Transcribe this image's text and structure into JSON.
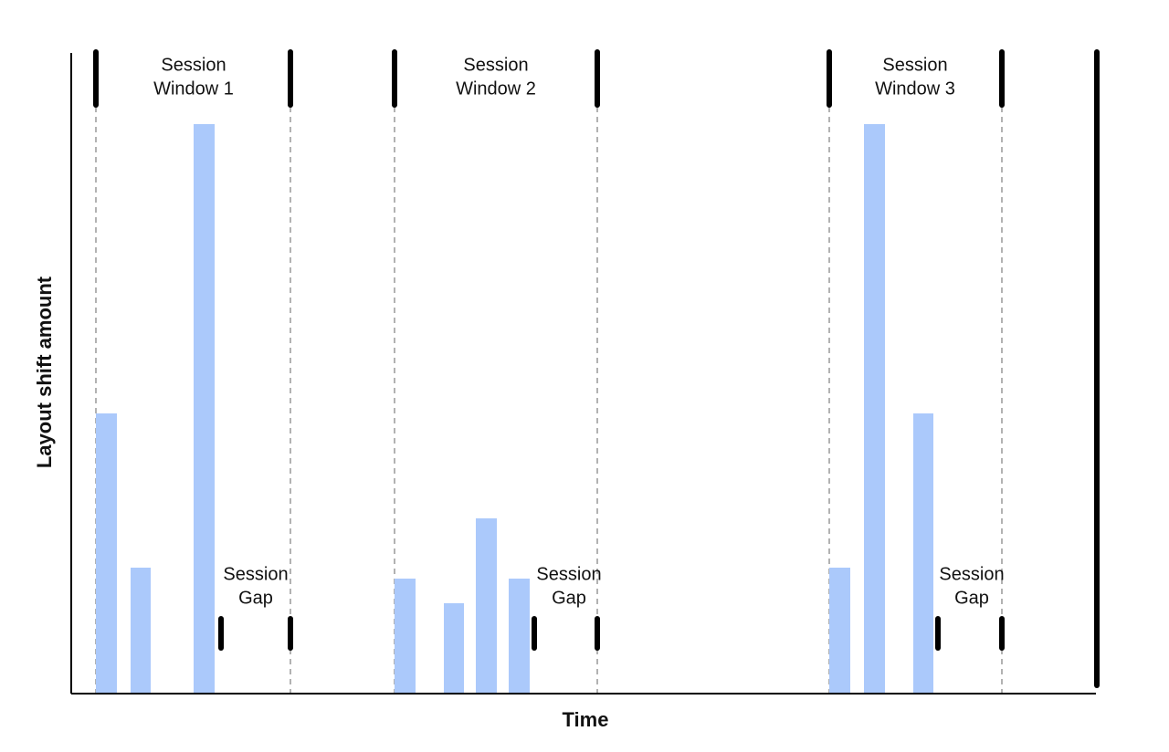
{
  "axes": {
    "y_title": "Layout shift amount",
    "x_title": "Time"
  },
  "windows": [
    {
      "label_line1": "Session",
      "label_line2": "Window 1"
    },
    {
      "label_line1": "Session",
      "label_line2": "Window 2"
    },
    {
      "label_line1": "Session",
      "label_line2": "Window 3"
    }
  ],
  "gaps": [
    {
      "label_line1": "Session",
      "label_line2": "Gap"
    },
    {
      "label_line1": "Session",
      "label_line2": "Gap"
    },
    {
      "label_line1": "Session",
      "label_line2": "Gap"
    }
  ]
}
